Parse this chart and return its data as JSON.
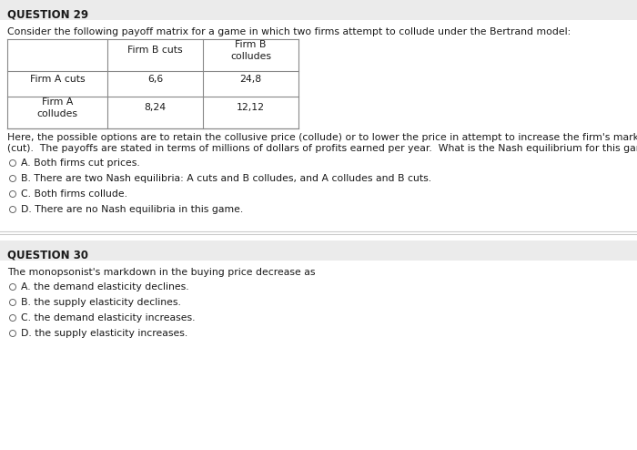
{
  "bg_color": "#ffffff",
  "q29_title": "QUESTION 29",
  "q29_intro": "Consider the following payoff matrix for a game in which two firms attempt to collude under the Bertrand model:",
  "table_col_headers": [
    "Firm B cuts",
    "Firm B\ncolludes"
  ],
  "table_row_headers": [
    "Firm A cuts",
    "Firm A\ncolludes"
  ],
  "table_cells": [
    [
      "6,6",
      "24,8"
    ],
    [
      "8,24",
      "12,12"
    ]
  ],
  "q29_body1": "Here, the possible options are to retain the collusive price (collude) or to lower the price in attempt to increase the firm's market share",
  "q29_body2": "(cut).  The payoffs are stated in terms of millions of dollars of profits earned per year.  What is the Nash equilibrium for this game?",
  "q29_options": [
    "A. Both firms cut prices.",
    "B. There are two Nash equilibria: A cuts and B colludes, and A colludes and B cuts.",
    "C. Both firms collude.",
    "D. There are no Nash equilibria in this game."
  ],
  "q30_title": "QUESTION 30",
  "q30_intro": "The monopsonist's markdown in the buying price decrease as",
  "q30_options": [
    "A. the demand elasticity declines.",
    "B. the supply elasticity declines.",
    "C. the demand elasticity increases.",
    "D. the supply elasticity increases."
  ],
  "title_bar_color": "#ebebeb",
  "divider_color": "#cccccc",
  "text_color": "#1a1a1a",
  "circle_color": "#666666",
  "title_fontsize": 8.5,
  "body_fontsize": 7.8,
  "table_fontsize": 7.8
}
